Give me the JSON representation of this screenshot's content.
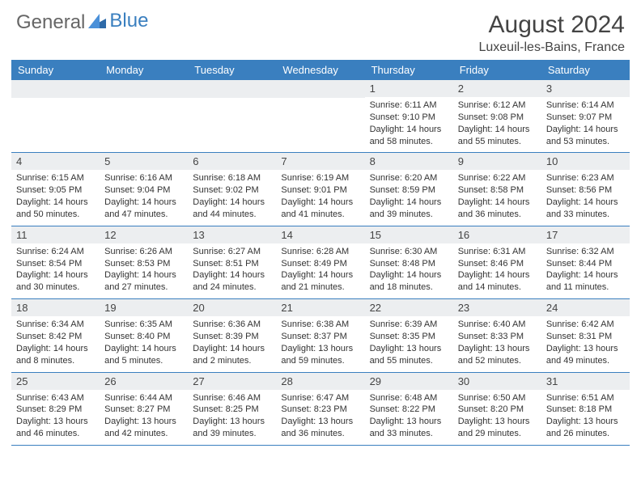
{
  "brand": {
    "part1": "General",
    "part2": "Blue"
  },
  "title": {
    "month": "August 2024",
    "location": "Luxeuil-les-Bains, France"
  },
  "colors": {
    "header_bg": "#3a7fbf",
    "header_fg": "#ffffff",
    "daynum_bg": "#eceef0",
    "border": "#3a7fbf"
  },
  "dayNames": [
    "Sunday",
    "Monday",
    "Tuesday",
    "Wednesday",
    "Thursday",
    "Friday",
    "Saturday"
  ],
  "weeks": [
    [
      {
        "n": "",
        "sr": "",
        "ss": "",
        "dl": ""
      },
      {
        "n": "",
        "sr": "",
        "ss": "",
        "dl": ""
      },
      {
        "n": "",
        "sr": "",
        "ss": "",
        "dl": ""
      },
      {
        "n": "",
        "sr": "",
        "ss": "",
        "dl": ""
      },
      {
        "n": "1",
        "sr": "Sunrise: 6:11 AM",
        "ss": "Sunset: 9:10 PM",
        "dl": "Daylight: 14 hours and 58 minutes."
      },
      {
        "n": "2",
        "sr": "Sunrise: 6:12 AM",
        "ss": "Sunset: 9:08 PM",
        "dl": "Daylight: 14 hours and 55 minutes."
      },
      {
        "n": "3",
        "sr": "Sunrise: 6:14 AM",
        "ss": "Sunset: 9:07 PM",
        "dl": "Daylight: 14 hours and 53 minutes."
      }
    ],
    [
      {
        "n": "4",
        "sr": "Sunrise: 6:15 AM",
        "ss": "Sunset: 9:05 PM",
        "dl": "Daylight: 14 hours and 50 minutes."
      },
      {
        "n": "5",
        "sr": "Sunrise: 6:16 AM",
        "ss": "Sunset: 9:04 PM",
        "dl": "Daylight: 14 hours and 47 minutes."
      },
      {
        "n": "6",
        "sr": "Sunrise: 6:18 AM",
        "ss": "Sunset: 9:02 PM",
        "dl": "Daylight: 14 hours and 44 minutes."
      },
      {
        "n": "7",
        "sr": "Sunrise: 6:19 AM",
        "ss": "Sunset: 9:01 PM",
        "dl": "Daylight: 14 hours and 41 minutes."
      },
      {
        "n": "8",
        "sr": "Sunrise: 6:20 AM",
        "ss": "Sunset: 8:59 PM",
        "dl": "Daylight: 14 hours and 39 minutes."
      },
      {
        "n": "9",
        "sr": "Sunrise: 6:22 AM",
        "ss": "Sunset: 8:58 PM",
        "dl": "Daylight: 14 hours and 36 minutes."
      },
      {
        "n": "10",
        "sr": "Sunrise: 6:23 AM",
        "ss": "Sunset: 8:56 PM",
        "dl": "Daylight: 14 hours and 33 minutes."
      }
    ],
    [
      {
        "n": "11",
        "sr": "Sunrise: 6:24 AM",
        "ss": "Sunset: 8:54 PM",
        "dl": "Daylight: 14 hours and 30 minutes."
      },
      {
        "n": "12",
        "sr": "Sunrise: 6:26 AM",
        "ss": "Sunset: 8:53 PM",
        "dl": "Daylight: 14 hours and 27 minutes."
      },
      {
        "n": "13",
        "sr": "Sunrise: 6:27 AM",
        "ss": "Sunset: 8:51 PM",
        "dl": "Daylight: 14 hours and 24 minutes."
      },
      {
        "n": "14",
        "sr": "Sunrise: 6:28 AM",
        "ss": "Sunset: 8:49 PM",
        "dl": "Daylight: 14 hours and 21 minutes."
      },
      {
        "n": "15",
        "sr": "Sunrise: 6:30 AM",
        "ss": "Sunset: 8:48 PM",
        "dl": "Daylight: 14 hours and 18 minutes."
      },
      {
        "n": "16",
        "sr": "Sunrise: 6:31 AM",
        "ss": "Sunset: 8:46 PM",
        "dl": "Daylight: 14 hours and 14 minutes."
      },
      {
        "n": "17",
        "sr": "Sunrise: 6:32 AM",
        "ss": "Sunset: 8:44 PM",
        "dl": "Daylight: 14 hours and 11 minutes."
      }
    ],
    [
      {
        "n": "18",
        "sr": "Sunrise: 6:34 AM",
        "ss": "Sunset: 8:42 PM",
        "dl": "Daylight: 14 hours and 8 minutes."
      },
      {
        "n": "19",
        "sr": "Sunrise: 6:35 AM",
        "ss": "Sunset: 8:40 PM",
        "dl": "Daylight: 14 hours and 5 minutes."
      },
      {
        "n": "20",
        "sr": "Sunrise: 6:36 AM",
        "ss": "Sunset: 8:39 PM",
        "dl": "Daylight: 14 hours and 2 minutes."
      },
      {
        "n": "21",
        "sr": "Sunrise: 6:38 AM",
        "ss": "Sunset: 8:37 PM",
        "dl": "Daylight: 13 hours and 59 minutes."
      },
      {
        "n": "22",
        "sr": "Sunrise: 6:39 AM",
        "ss": "Sunset: 8:35 PM",
        "dl": "Daylight: 13 hours and 55 minutes."
      },
      {
        "n": "23",
        "sr": "Sunrise: 6:40 AM",
        "ss": "Sunset: 8:33 PM",
        "dl": "Daylight: 13 hours and 52 minutes."
      },
      {
        "n": "24",
        "sr": "Sunrise: 6:42 AM",
        "ss": "Sunset: 8:31 PM",
        "dl": "Daylight: 13 hours and 49 minutes."
      }
    ],
    [
      {
        "n": "25",
        "sr": "Sunrise: 6:43 AM",
        "ss": "Sunset: 8:29 PM",
        "dl": "Daylight: 13 hours and 46 minutes."
      },
      {
        "n": "26",
        "sr": "Sunrise: 6:44 AM",
        "ss": "Sunset: 8:27 PM",
        "dl": "Daylight: 13 hours and 42 minutes."
      },
      {
        "n": "27",
        "sr": "Sunrise: 6:46 AM",
        "ss": "Sunset: 8:25 PM",
        "dl": "Daylight: 13 hours and 39 minutes."
      },
      {
        "n": "28",
        "sr": "Sunrise: 6:47 AM",
        "ss": "Sunset: 8:23 PM",
        "dl": "Daylight: 13 hours and 36 minutes."
      },
      {
        "n": "29",
        "sr": "Sunrise: 6:48 AM",
        "ss": "Sunset: 8:22 PM",
        "dl": "Daylight: 13 hours and 33 minutes."
      },
      {
        "n": "30",
        "sr": "Sunrise: 6:50 AM",
        "ss": "Sunset: 8:20 PM",
        "dl": "Daylight: 13 hours and 29 minutes."
      },
      {
        "n": "31",
        "sr": "Sunrise: 6:51 AM",
        "ss": "Sunset: 8:18 PM",
        "dl": "Daylight: 13 hours and 26 minutes."
      }
    ]
  ]
}
